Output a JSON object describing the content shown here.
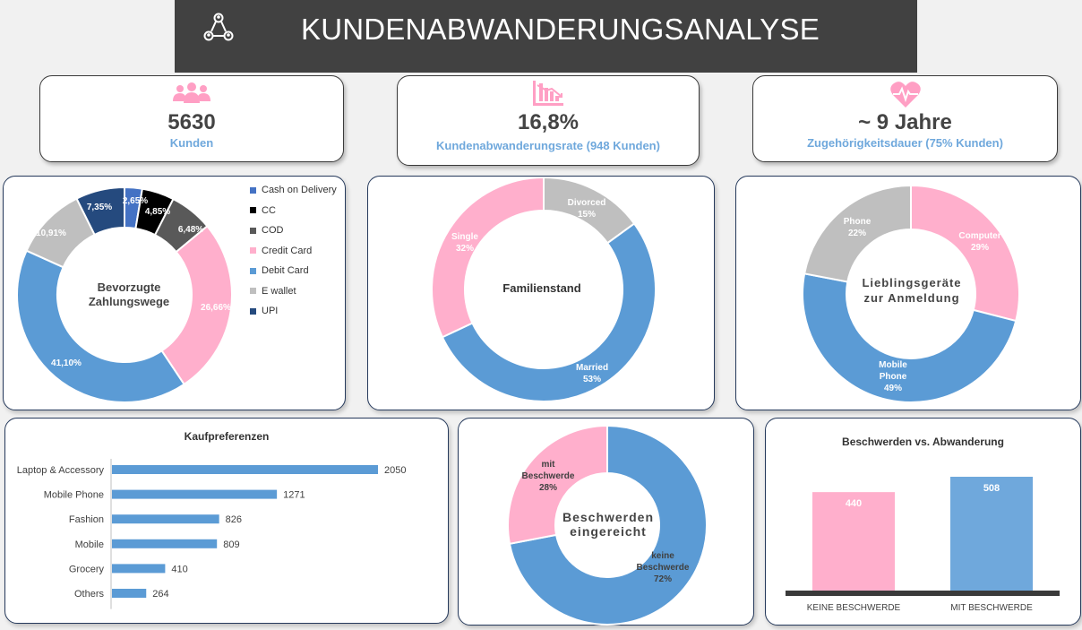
{
  "header": {
    "title": "KUNDENABWANDERUNGSANALYSE",
    "icon": "network-people-icon"
  },
  "kpis": [
    {
      "value": "5630",
      "label": "Kunden",
      "icon": "people-icon"
    },
    {
      "value": "16,8%",
      "label": "Kundenabwanderungsrate (948 Kunden)",
      "icon": "declining-bar-chart-icon"
    },
    {
      "value": "~ 9 Jahre",
      "label": "Zugehörigkeitsdauer (75% Kunden)",
      "icon": "heart-pulse-icon"
    }
  ],
  "colors": {
    "blue": "#5b9bd5",
    "pink": "#ffafcc",
    "gray": "#bfbfbf",
    "navy": "#254a7e",
    "dark": "#595959",
    "black": "#000000",
    "debit": "#4472c4"
  },
  "chart_data": [
    {
      "type": "pie",
      "variant": "donut",
      "title": "Bevorzugte Zahlungswege",
      "slices": [
        {
          "name": "Cash on Delivery",
          "value": 2.65,
          "label": "2,65%",
          "color": "#4472c4"
        },
        {
          "name": "CC",
          "value": 4.85,
          "label": "4,85%",
          "color": "#000000"
        },
        {
          "name": "COD",
          "value": 6.48,
          "label": "6,48%",
          "color": "#595959"
        },
        {
          "name": "Credit Card",
          "value": 26.66,
          "label": "26,66%",
          "color": "#ffafcc"
        },
        {
          "name": "Debit Card",
          "value": 41.1,
          "label": "41,10%",
          "color": "#5b9bd5"
        },
        {
          "name": "E wallet",
          "value": 10.91,
          "label": "10,91%",
          "color": "#bfbfbf"
        },
        {
          "name": "UPI",
          "value": 7.35,
          "label": "7,35%",
          "color": "#254a7e"
        }
      ],
      "legend_position": "right"
    },
    {
      "type": "pie",
      "variant": "donut",
      "title": "Familienstand",
      "slices": [
        {
          "name": "Divorced",
          "value": 15,
          "label": "15%",
          "color": "#bfbfbf"
        },
        {
          "name": "Married",
          "value": 53,
          "label": "53%",
          "color": "#5b9bd5"
        },
        {
          "name": "Single",
          "value": 32,
          "label": "32%",
          "color": "#ffafcc"
        }
      ]
    },
    {
      "type": "pie",
      "variant": "donut",
      "title": "Lieblingsgeräte zur Anmeldung",
      "title_lines": [
        "Lieblingsgeräte",
        "zur Anmeldung"
      ],
      "slices": [
        {
          "name": "Computer",
          "value": 29,
          "label": "29%",
          "color": "#ffafcc"
        },
        {
          "name": "Mobile Phone",
          "name_lines": [
            "Mobile",
            "Phone"
          ],
          "value": 49,
          "label": "49%",
          "color": "#5b9bd5"
        },
        {
          "name": "Phone",
          "value": 22,
          "label": "22%",
          "color": "#bfbfbf"
        }
      ]
    },
    {
      "type": "bar",
      "orientation": "horizontal",
      "title": "Kaufpreferenzen",
      "categories": [
        "Laptop & Accessory",
        "Mobile Phone",
        "Fashion",
        "Mobile",
        "Grocery",
        "Others"
      ],
      "values": [
        2050,
        1271,
        826,
        809,
        410,
        264
      ],
      "xlim": [
        0,
        2050
      ],
      "color": "#5b9bd5"
    },
    {
      "type": "pie",
      "variant": "donut",
      "title": "Beschwerden eingereicht",
      "title_lines": [
        "Beschwerden",
        "eingereicht"
      ],
      "slices": [
        {
          "name": "keine Beschwerde",
          "name_lines": [
            "keine",
            "Beschwerde"
          ],
          "value": 72,
          "label": "72%",
          "color": "#5b9bd5"
        },
        {
          "name": "mit Beschwerde",
          "name_lines": [
            "mit",
            "Beschwerde"
          ],
          "value": 28,
          "label": "28%",
          "color": "#ffafcc"
        }
      ]
    },
    {
      "type": "bar",
      "title": "Beschwerden vs. Abwanderung",
      "categories": [
        "KEINE BESCHWERDE",
        "MIT BESCHWERDE"
      ],
      "values": [
        440,
        508
      ],
      "colors": [
        "#ffafcc",
        "#6fa8dc"
      ],
      "ylim": [
        0,
        508
      ]
    }
  ]
}
